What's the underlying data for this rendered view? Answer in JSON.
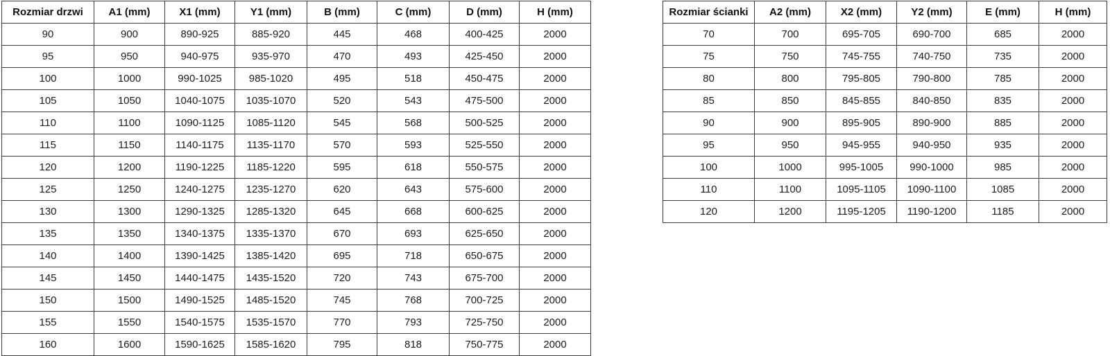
{
  "colors": {
    "background": "#ffffff",
    "border": "#3a3a3a",
    "text": "#1c1c1c"
  },
  "tables": [
    {
      "id": "door-size-table",
      "headers": [
        "Rozmiar drzwi",
        "A1 (mm)",
        "X1 (mm)",
        "Y1 (mm)",
        "B (mm)",
        "C (mm)",
        "D (mm)",
        "H (mm)"
      ],
      "rows": [
        [
          "90",
          "900",
          "890-925",
          "885-920",
          "445",
          "468",
          "400-425",
          "2000"
        ],
        [
          "95",
          "950",
          "940-975",
          "935-970",
          "470",
          "493",
          "425-450",
          "2000"
        ],
        [
          "100",
          "1000",
          "990-1025",
          "985-1020",
          "495",
          "518",
          "450-475",
          "2000"
        ],
        [
          "105",
          "1050",
          "1040-1075",
          "1035-1070",
          "520",
          "543",
          "475-500",
          "2000"
        ],
        [
          "110",
          "1100",
          "1090-1125",
          "1085-1120",
          "545",
          "568",
          "500-525",
          "2000"
        ],
        [
          "115",
          "1150",
          "1140-1175",
          "1135-1170",
          "570",
          "593",
          "525-550",
          "2000"
        ],
        [
          "120",
          "1200",
          "1190-1225",
          "1185-1220",
          "595",
          "618",
          "550-575",
          "2000"
        ],
        [
          "125",
          "1250",
          "1240-1275",
          "1235-1270",
          "620",
          "643",
          "575-600",
          "2000"
        ],
        [
          "130",
          "1300",
          "1290-1325",
          "1285-1320",
          "645",
          "668",
          "600-625",
          "2000"
        ],
        [
          "135",
          "1350",
          "1340-1375",
          "1335-1370",
          "670",
          "693",
          "625-650",
          "2000"
        ],
        [
          "140",
          "1400",
          "1390-1425",
          "1385-1420",
          "695",
          "718",
          "650-675",
          "2000"
        ],
        [
          "145",
          "1450",
          "1440-1475",
          "1435-1520",
          "720",
          "743",
          "675-700",
          "2000"
        ],
        [
          "150",
          "1500",
          "1490-1525",
          "1485-1520",
          "745",
          "768",
          "700-725",
          "2000"
        ],
        [
          "155",
          "1550",
          "1540-1575",
          "1535-1570",
          "770",
          "793",
          "725-750",
          "2000"
        ],
        [
          "160",
          "1600",
          "1590-1625",
          "1585-1620",
          "795",
          "818",
          "750-775",
          "2000"
        ]
      ]
    },
    {
      "id": "wall-size-table",
      "headers": [
        "Rozmiar ścianki",
        "A2 (mm)",
        "X2 (mm)",
        "Y2 (mm)",
        "E (mm)",
        "H (mm)"
      ],
      "rows": [
        [
          "70",
          "700",
          "695-705",
          "690-700",
          "685",
          "2000"
        ],
        [
          "75",
          "750",
          "745-755",
          "740-750",
          "735",
          "2000"
        ],
        [
          "80",
          "800",
          "795-805",
          "790-800",
          "785",
          "2000"
        ],
        [
          "85",
          "850",
          "845-855",
          "840-850",
          "835",
          "2000"
        ],
        [
          "90",
          "900",
          "895-905",
          "890-900",
          "885",
          "2000"
        ],
        [
          "95",
          "950",
          "945-955",
          "940-950",
          "935",
          "2000"
        ],
        [
          "100",
          "1000",
          "995-1005",
          "990-1000",
          "985",
          "2000"
        ],
        [
          "110",
          "1100",
          "1095-1105",
          "1090-1100",
          "1085",
          "2000"
        ],
        [
          "120",
          "1200",
          "1195-1205",
          "1190-1200",
          "1185",
          "2000"
        ]
      ]
    }
  ]
}
